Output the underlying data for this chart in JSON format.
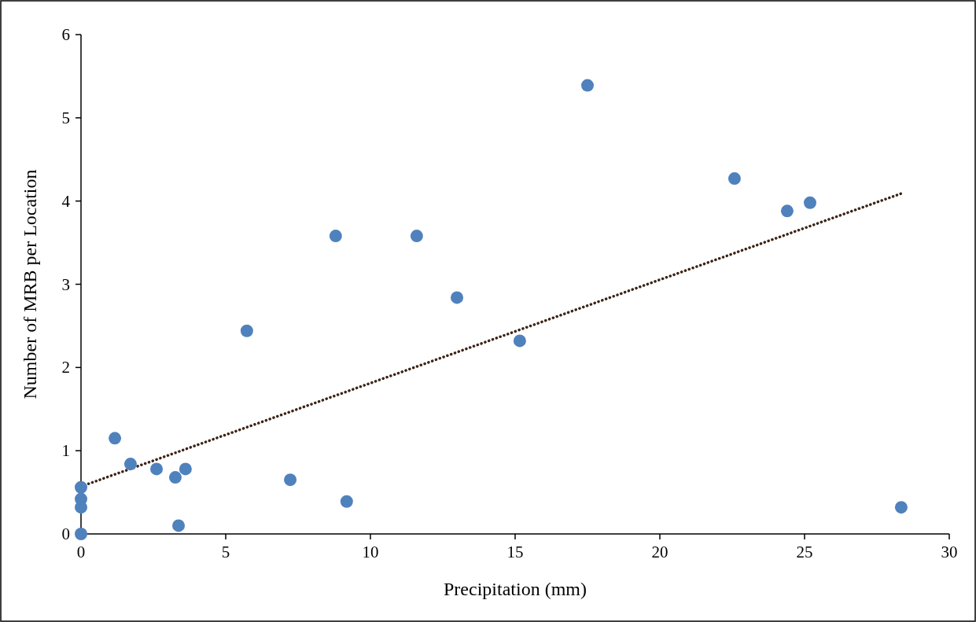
{
  "chart_data": {
    "type": "scatter",
    "xlabel": "Precipitation (mm)",
    "ylabel": "Number of MRB per Location",
    "xlim": [
      0,
      30
    ],
    "xticks": [
      0,
      5,
      10,
      15,
      20,
      25,
      30
    ],
    "ylim": [
      0,
      6
    ],
    "yticks": [
      0,
      1,
      2,
      3,
      4,
      5,
      6
    ],
    "grid": false,
    "series": [
      {
        "color": "#4f81bd",
        "marker": "circle",
        "x": [
          0,
          0,
          0,
          0,
          1.17,
          1.71,
          2.61,
          3.26,
          3.37,
          3.61,
          5.73,
          7.23,
          8.8,
          9.18,
          11.6,
          12.99,
          15.16,
          17.5,
          22.58,
          24.4,
          25.19,
          28.34
        ],
        "values": [
          0,
          0.32,
          0.42,
          0.56,
          1.15,
          0.84,
          0.78,
          0.68,
          0.1,
          0.78,
          2.44,
          0.65,
          3.58,
          0.39,
          3.58,
          2.84,
          2.32,
          5.39,
          4.27,
          3.88,
          3.98,
          0.32
        ]
      },
      {
        "type": "line",
        "color": "#3b2416",
        "line_style": "dotted",
        "marker": "none",
        "x": [
          0,
          28.34
        ],
        "values": [
          0.57,
          4.09
        ]
      }
    ]
  }
}
